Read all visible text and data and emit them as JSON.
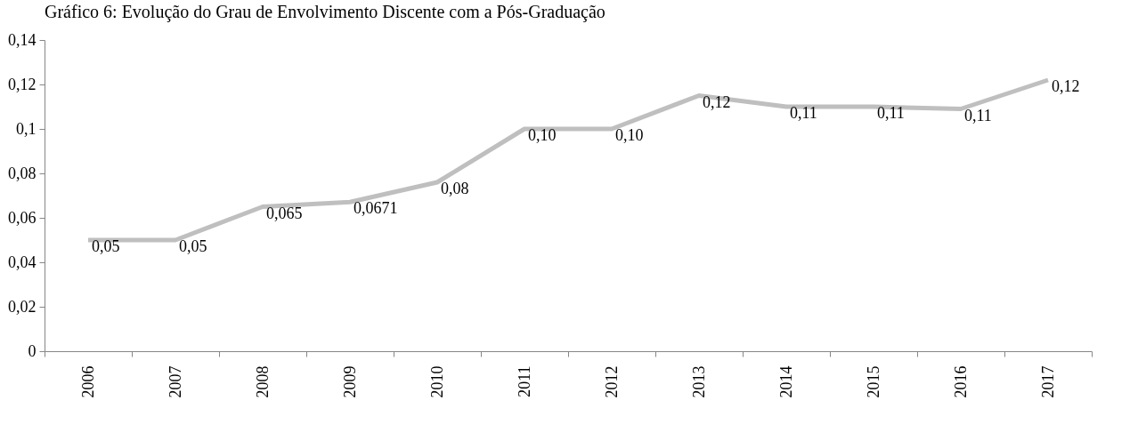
{
  "chart_data": {
    "type": "line",
    "title": "Gráfico 6: Evolução do Grau de Envolvimento Discente com a Pós-Graduação",
    "categories": [
      "2006",
      "2007",
      "2008",
      "2009",
      "2010",
      "2011",
      "2012",
      "2013",
      "2014",
      "2015",
      "2016",
      "2017"
    ],
    "series": [
      {
        "color": "#bfbfbf",
        "values": [
          0.05,
          0.05,
          0.065,
          0.0671,
          0.076,
          0.1,
          0.1,
          0.115,
          0.11,
          0.11,
          0.109,
          0.122
        ],
        "value_labels": [
          "0,05",
          "0,05",
          "0,065",
          "0,0671",
          "0,08",
          "0,10",
          "0,10",
          "0,12",
          "0,11",
          "0,11",
          "0,11",
          "0,12"
        ]
      }
    ],
    "ylim": [
      0,
      0.14
    ],
    "yticks": [
      {
        "value": 0,
        "label": "0"
      },
      {
        "value": 0.02,
        "label": "0,02"
      },
      {
        "value": 0.04,
        "label": "0,04"
      },
      {
        "value": 0.06,
        "label": "0,06"
      },
      {
        "value": 0.08,
        "label": "0,08"
      },
      {
        "value": 0.1,
        "label": "0,1"
      },
      {
        "value": 0.12,
        "label": "0,12"
      },
      {
        "value": 0.14,
        "label": "0,14"
      }
    ],
    "grid": false,
    "legend": false,
    "marker": "none",
    "line_style": "solid"
  }
}
